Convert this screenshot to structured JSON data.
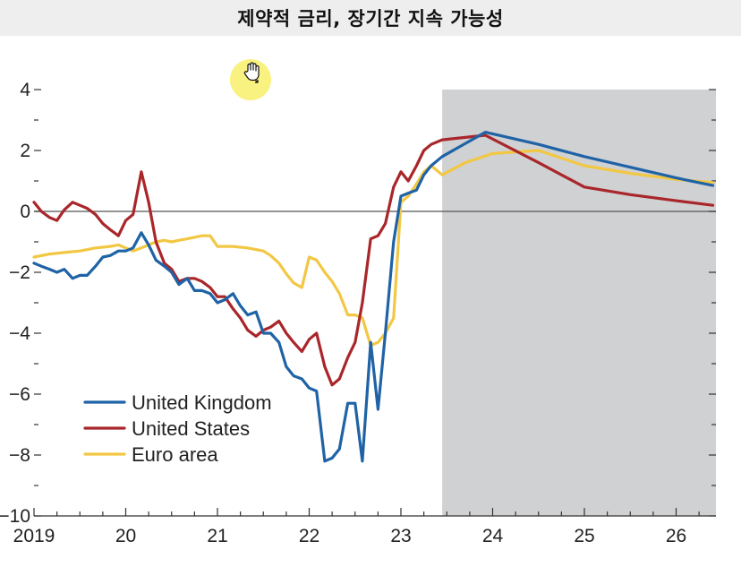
{
  "title": "제약적 금리, 장기간 지속 가능성",
  "icons": {
    "cursor": "hand-cursor-icon"
  },
  "colors": {
    "united_kingdom": "#1f63a6",
    "united_states": "#a9262a",
    "euro_area": "#f2c744",
    "forecast_shade": "#d0d1d3",
    "zero_line": "#555555"
  },
  "chart_data": {
    "type": "line",
    "title": "",
    "xlabel": "",
    "ylabel": "",
    "xlim": [
      2019,
      2026.45
    ],
    "ylim": [
      -10,
      4.5
    ],
    "y_ticks": [
      4,
      2,
      0,
      -2,
      -4,
      -6,
      -8,
      -10
    ],
    "y_tick_labels": [
      "4",
      "2",
      "0",
      "−2",
      "−4",
      "−6",
      "−8",
      "−10"
    ],
    "x_ticks": [
      2019,
      2020,
      2021,
      2022,
      2023,
      2024,
      2025,
      2026
    ],
    "x_tick_labels": [
      "2019",
      "20",
      "21",
      "22",
      "23",
      "24",
      "25",
      "26"
    ],
    "zero_line": 0,
    "shaded_region": {
      "from": 2023.45,
      "to": 2026.45,
      "label": ""
    },
    "grid": false,
    "legend": {
      "position": "bottom-left"
    },
    "series": [
      {
        "name": "United Kingdom",
        "color": "#1f63a6",
        "points": [
          [
            2019.0,
            -1.7
          ],
          [
            2019.08,
            -1.8
          ],
          [
            2019.17,
            -1.9
          ],
          [
            2019.25,
            -2.0
          ],
          [
            2019.33,
            -1.9
          ],
          [
            2019.42,
            -2.2
          ],
          [
            2019.5,
            -2.1
          ],
          [
            2019.58,
            -2.1
          ],
          [
            2019.67,
            -1.8
          ],
          [
            2019.75,
            -1.5
          ],
          [
            2019.83,
            -1.45
          ],
          [
            2019.92,
            -1.3
          ],
          [
            2020.0,
            -1.3
          ],
          [
            2020.08,
            -1.2
          ],
          [
            2020.17,
            -0.7
          ],
          [
            2020.25,
            -1.1
          ],
          [
            2020.33,
            -1.6
          ],
          [
            2020.42,
            -1.8
          ],
          [
            2020.5,
            -2.0
          ],
          [
            2020.58,
            -2.4
          ],
          [
            2020.67,
            -2.2
          ],
          [
            2020.75,
            -2.6
          ],
          [
            2020.83,
            -2.6
          ],
          [
            2020.92,
            -2.7
          ],
          [
            2021.0,
            -3.0
          ],
          [
            2021.08,
            -2.9
          ],
          [
            2021.17,
            -2.7
          ],
          [
            2021.25,
            -3.1
          ],
          [
            2021.33,
            -3.4
          ],
          [
            2021.42,
            -3.3
          ],
          [
            2021.5,
            -4.0
          ],
          [
            2021.58,
            -4.0
          ],
          [
            2021.67,
            -4.3
          ],
          [
            2021.75,
            -5.1
          ],
          [
            2021.83,
            -5.4
          ],
          [
            2021.92,
            -5.5
          ],
          [
            2022.0,
            -5.8
          ],
          [
            2022.08,
            -5.9
          ],
          [
            2022.17,
            -8.2
          ],
          [
            2022.25,
            -8.1
          ],
          [
            2022.33,
            -7.8
          ],
          [
            2022.42,
            -6.3
          ],
          [
            2022.5,
            -6.3
          ],
          [
            2022.58,
            -8.2
          ],
          [
            2022.67,
            -4.3
          ],
          [
            2022.75,
            -6.5
          ],
          [
            2022.83,
            -4.0
          ],
          [
            2022.92,
            -1.0
          ],
          [
            2023.0,
            0.5
          ],
          [
            2023.08,
            0.6
          ],
          [
            2023.17,
            0.7
          ],
          [
            2023.25,
            1.2
          ],
          [
            2023.33,
            1.5
          ],
          [
            2023.45,
            1.8
          ],
          [
            2023.92,
            2.6
          ],
          [
            2024.5,
            2.2
          ],
          [
            2025.0,
            1.8
          ],
          [
            2025.5,
            1.45
          ],
          [
            2026.0,
            1.1
          ],
          [
            2026.4,
            0.85
          ]
        ]
      },
      {
        "name": "United States",
        "color": "#a9262a",
        "points": [
          [
            2019.0,
            0.3
          ],
          [
            2019.08,
            0.0
          ],
          [
            2019.17,
            -0.2
          ],
          [
            2019.25,
            -0.3
          ],
          [
            2019.33,
            0.05
          ],
          [
            2019.42,
            0.3
          ],
          [
            2019.5,
            0.2
          ],
          [
            2019.58,
            0.1
          ],
          [
            2019.67,
            -0.1
          ],
          [
            2019.75,
            -0.4
          ],
          [
            2019.83,
            -0.6
          ],
          [
            2019.92,
            -0.8
          ],
          [
            2020.0,
            -0.3
          ],
          [
            2020.08,
            -0.1
          ],
          [
            2020.17,
            1.3
          ],
          [
            2020.25,
            0.3
          ],
          [
            2020.33,
            -1.0
          ],
          [
            2020.42,
            -1.7
          ],
          [
            2020.5,
            -1.9
          ],
          [
            2020.58,
            -2.3
          ],
          [
            2020.67,
            -2.2
          ],
          [
            2020.75,
            -2.2
          ],
          [
            2020.83,
            -2.3
          ],
          [
            2020.92,
            -2.5
          ],
          [
            2021.0,
            -2.8
          ],
          [
            2021.08,
            -2.8
          ],
          [
            2021.17,
            -3.2
          ],
          [
            2021.25,
            -3.5
          ],
          [
            2021.33,
            -3.9
          ],
          [
            2021.42,
            -4.1
          ],
          [
            2021.5,
            -3.9
          ],
          [
            2021.58,
            -3.8
          ],
          [
            2021.67,
            -3.6
          ],
          [
            2021.75,
            -4.0
          ],
          [
            2021.83,
            -4.3
          ],
          [
            2021.92,
            -4.6
          ],
          [
            2022.0,
            -4.2
          ],
          [
            2022.08,
            -4.0
          ],
          [
            2022.17,
            -5.1
          ],
          [
            2022.25,
            -5.7
          ],
          [
            2022.33,
            -5.5
          ],
          [
            2022.42,
            -4.8
          ],
          [
            2022.5,
            -4.3
          ],
          [
            2022.58,
            -3.0
          ],
          [
            2022.67,
            -0.9
          ],
          [
            2022.75,
            -0.8
          ],
          [
            2022.83,
            -0.4
          ],
          [
            2022.92,
            0.8
          ],
          [
            2023.0,
            1.3
          ],
          [
            2023.08,
            1.0
          ],
          [
            2023.17,
            1.5
          ],
          [
            2023.25,
            2.0
          ],
          [
            2023.33,
            2.2
          ],
          [
            2023.45,
            2.35
          ],
          [
            2023.92,
            2.5
          ],
          [
            2024.5,
            1.6
          ],
          [
            2025.0,
            0.8
          ],
          [
            2025.5,
            0.55
          ],
          [
            2026.0,
            0.35
          ],
          [
            2026.4,
            0.2
          ]
        ]
      },
      {
        "name": "Euro area",
        "color": "#f2c744",
        "points": [
          [
            2019.0,
            -1.5
          ],
          [
            2019.17,
            -1.4
          ],
          [
            2019.33,
            -1.35
          ],
          [
            2019.5,
            -1.3
          ],
          [
            2019.67,
            -1.2
          ],
          [
            2019.83,
            -1.15
          ],
          [
            2019.92,
            -1.1
          ],
          [
            2020.0,
            -1.2
          ],
          [
            2020.08,
            -1.3
          ],
          [
            2020.17,
            -1.2
          ],
          [
            2020.33,
            -1.0
          ],
          [
            2020.42,
            -0.95
          ],
          [
            2020.5,
            -1.0
          ],
          [
            2020.58,
            -0.95
          ],
          [
            2020.67,
            -0.9
          ],
          [
            2020.75,
            -0.85
          ],
          [
            2020.83,
            -0.8
          ],
          [
            2020.92,
            -0.8
          ],
          [
            2021.0,
            -1.15
          ],
          [
            2021.17,
            -1.15
          ],
          [
            2021.33,
            -1.2
          ],
          [
            2021.5,
            -1.3
          ],
          [
            2021.58,
            -1.45
          ],
          [
            2021.67,
            -1.7
          ],
          [
            2021.75,
            -2.05
          ],
          [
            2021.83,
            -2.35
          ],
          [
            2021.92,
            -2.5
          ],
          [
            2022.0,
            -1.5
          ],
          [
            2022.08,
            -1.6
          ],
          [
            2022.17,
            -2.0
          ],
          [
            2022.25,
            -2.3
          ],
          [
            2022.33,
            -2.7
          ],
          [
            2022.42,
            -3.4
          ],
          [
            2022.5,
            -3.4
          ],
          [
            2022.58,
            -3.5
          ],
          [
            2022.67,
            -4.4
          ],
          [
            2022.75,
            -4.3
          ],
          [
            2022.83,
            -4.0
          ],
          [
            2022.92,
            -3.5
          ],
          [
            2023.0,
            0.3
          ],
          [
            2023.08,
            0.5
          ],
          [
            2023.17,
            0.9
          ],
          [
            2023.25,
            1.3
          ],
          [
            2023.33,
            1.5
          ],
          [
            2023.45,
            1.2
          ],
          [
            2023.7,
            1.6
          ],
          [
            2024.0,
            1.9
          ],
          [
            2024.5,
            2.0
          ],
          [
            2025.0,
            1.5
          ],
          [
            2025.5,
            1.25
          ],
          [
            2026.0,
            1.05
          ],
          [
            2026.4,
            0.95
          ]
        ]
      }
    ]
  }
}
